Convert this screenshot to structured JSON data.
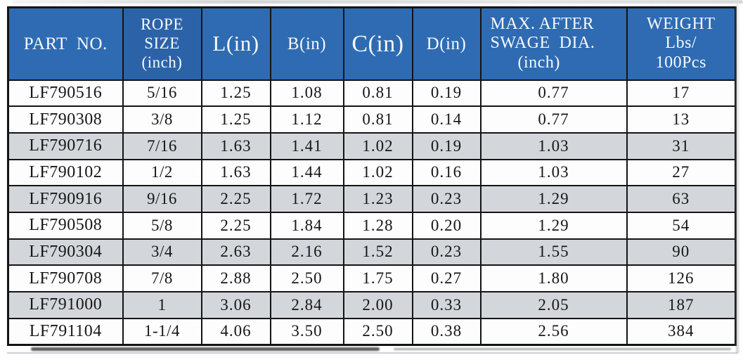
{
  "colors": {
    "header_bg": "#2e6bb3",
    "header_bg_alt": "#2c63a8",
    "header_text": "#f7f9fc",
    "row_shaded": "#d3d6da",
    "row_plain": "#fdfdfe",
    "cell_text": "#161616",
    "border": "#141414"
  },
  "table": {
    "columns": [
      {
        "key": "part_no",
        "label": "PART  NO."
      },
      {
        "key": "rope_size",
        "label": "ROPE\nSIZE\n(inch)"
      },
      {
        "key": "l_in",
        "label": "L(in)"
      },
      {
        "key": "b_in",
        "label": "B(in)"
      },
      {
        "key": "c_in",
        "label": "C(in)"
      },
      {
        "key": "d_in",
        "label": "D(in)"
      },
      {
        "key": "max_after_swage_dia",
        "label": "MAX. AFTER\nSWAGE  DIA.\n      (inch)"
      },
      {
        "key": "weight",
        "label": "WEIGHT\nLbs/\n100Pcs"
      }
    ],
    "rows": [
      {
        "shaded": false,
        "cells": [
          "LF790516",
          "5/16",
          "1.25",
          "1.08",
          "0.81",
          "0.19",
          "0.77",
          "17"
        ]
      },
      {
        "shaded": false,
        "cells": [
          "LF790308",
          "3/8",
          "1.25",
          "1.12",
          "0.81",
          "0.14",
          "0.77",
          "13"
        ]
      },
      {
        "shaded": true,
        "cells": [
          "LF790716",
          "7/16",
          "1.63",
          "1.41",
          "1.02",
          "0.19",
          "1.03",
          "31"
        ]
      },
      {
        "shaded": false,
        "cells": [
          "LF790102",
          "1/2",
          "1.63",
          "1.44",
          "1.02",
          "0.16",
          "1.03",
          "27"
        ]
      },
      {
        "shaded": true,
        "cells": [
          "LF790916",
          "9/16",
          "2.25",
          "1.72",
          "1.23",
          "0.23",
          "1.29",
          "63"
        ]
      },
      {
        "shaded": false,
        "cells": [
          "LF790508",
          "5/8",
          "2.25",
          "1.84",
          "1.28",
          "0.20",
          "1.29",
          "54"
        ]
      },
      {
        "shaded": true,
        "cells": [
          "LF790304",
          "3/4",
          "2.63",
          "2.16",
          "1.52",
          "0.23",
          "1.55",
          "90"
        ]
      },
      {
        "shaded": false,
        "cells": [
          "LF790708",
          "7/8",
          "2.88",
          "2.50",
          "1.75",
          "0.27",
          "1.80",
          "126"
        ]
      },
      {
        "shaded": true,
        "cells": [
          "LF791000",
          "1",
          "3.06",
          "2.84",
          "2.00",
          "0.33",
          "2.05",
          "187"
        ]
      },
      {
        "shaded": false,
        "cells": [
          "LF791104",
          "1-1/4",
          "4.06",
          "3.50",
          "2.50",
          "0.38",
          "2.56",
          "384"
        ]
      }
    ]
  }
}
